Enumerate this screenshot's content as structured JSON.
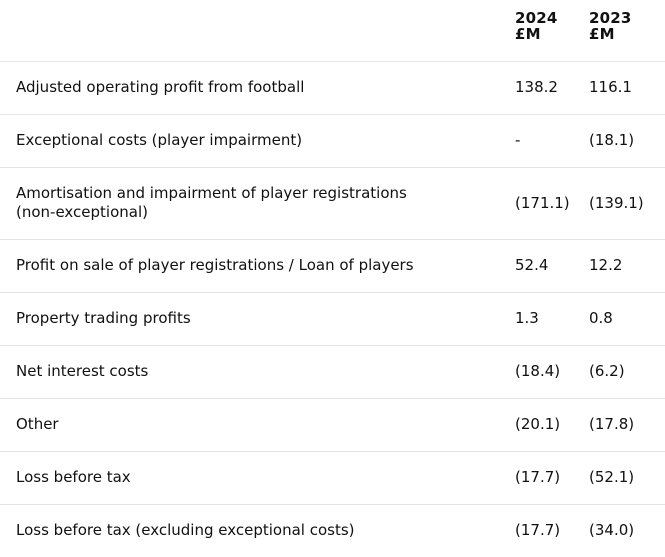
{
  "header": {
    "col_2024": {
      "year": "2024",
      "unit": "£M"
    },
    "col_2023": {
      "year": "2023",
      "unit": "£M"
    }
  },
  "rows": [
    {
      "label": "Adjusted operating profit from football",
      "v2024": "138.2",
      "v2023": "116.1"
    },
    {
      "label": "Exceptional costs (player impairment)",
      "v2024": "-",
      "v2023": "(18.1)"
    },
    {
      "label": "Amortisation and impairment of player registrations (non-exceptional)",
      "v2024": "(171.1)",
      "v2023": "(139.1)"
    },
    {
      "label": "Profit on sale of player registrations / Loan of players",
      "v2024": "52.4",
      "v2023": "12.2"
    },
    {
      "label": "Property trading profits",
      "v2024": "1.3",
      "v2023": "0.8"
    },
    {
      "label": "Net interest costs",
      "v2024": "(18.4)",
      "v2023": "(6.2)"
    },
    {
      "label": "Other",
      "v2024": "(20.1)",
      "v2023": "(17.8)"
    },
    {
      "label": "Loss before tax",
      "v2024": "(17.7)",
      "v2023": "(52.1)"
    },
    {
      "label": "Loss before tax (excluding exceptional costs)",
      "v2024": "(17.7)",
      "v2023": "(34.0)"
    }
  ]
}
